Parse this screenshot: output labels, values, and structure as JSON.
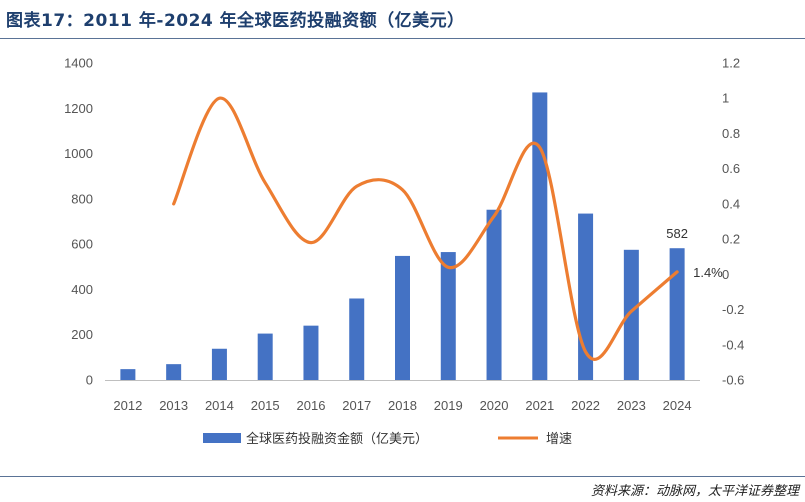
{
  "header": {
    "title": "图表17：2011 年-2024 年全球医药投融资额（亿美元）"
  },
  "footer": {
    "source": "资料来源：动脉网，太平洋证券整理"
  },
  "colors": {
    "bar": "#4472c4",
    "line": "#ed7d31",
    "title": "#1e3f6e"
  },
  "chart_data": {
    "type": "bar+line",
    "categories": [
      "2012",
      "2013",
      "2014",
      "2015",
      "2016",
      "2017",
      "2018",
      "2019",
      "2020",
      "2021",
      "2022",
      "2023",
      "2024"
    ],
    "series": [
      {
        "name": "全球医药投融资金额（亿美元）",
        "type": "bar",
        "axis": "left",
        "values": [
          48,
          70,
          138,
          205,
          240,
          360,
          548,
          565,
          752,
          1270,
          735,
          575,
          582
        ]
      },
      {
        "name": "增速",
        "type": "line",
        "axis": "right",
        "smooth": true,
        "values": [
          null,
          0.4,
          1.0,
          0.52,
          0.18,
          0.5,
          0.48,
          0.04,
          0.33,
          0.72,
          -0.44,
          -0.21,
          0.014
        ]
      }
    ],
    "y_left": {
      "min": 0,
      "max": 1400,
      "ticks": [
        "0",
        "200",
        "400",
        "600",
        "800",
        "1000",
        "1200",
        "1400"
      ]
    },
    "y_right": {
      "min": -0.6,
      "max": 1.2,
      "ticks": [
        "-0.6",
        "-0.4",
        "-0.2",
        "0",
        "0.2",
        "0.4",
        "0.6",
        "0.8",
        "1",
        "1.2"
      ]
    },
    "annotations": [
      {
        "series": "bar",
        "index": 12,
        "text": "582"
      },
      {
        "series": "line",
        "index": 12,
        "text": "1.4%"
      }
    ],
    "legend": {
      "position": "bottom",
      "items": [
        "全球医药投融资金额（亿美元）",
        "增速"
      ]
    },
    "grid": false
  }
}
